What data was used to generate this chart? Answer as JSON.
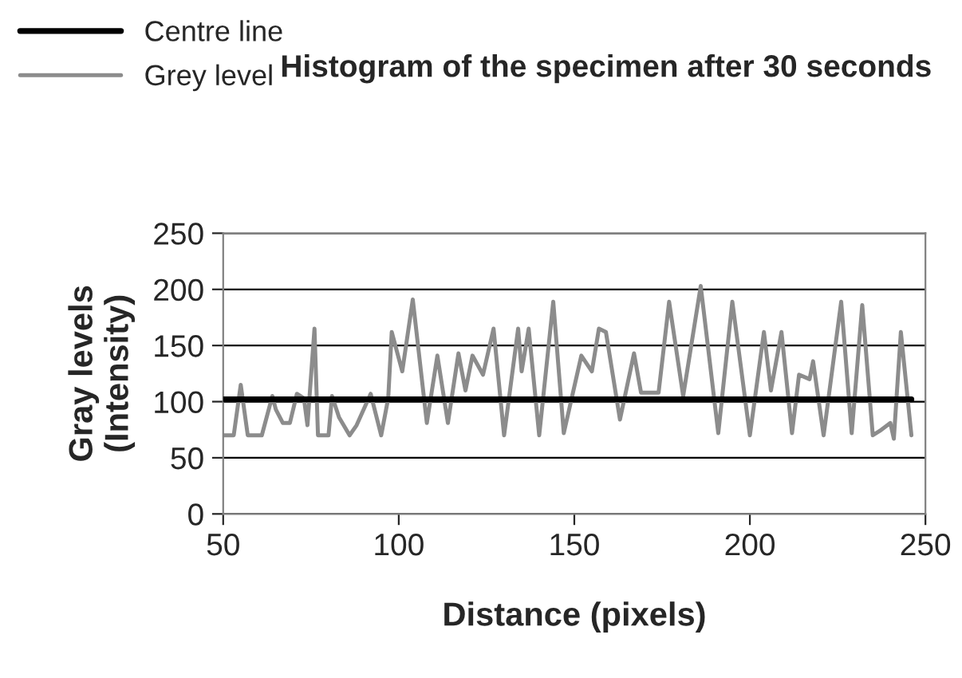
{
  "chart_data": {
    "type": "line",
    "title": "Histogram of the specimen after 30 seconds",
    "xlabel": "Distance (pixels)",
    "ylabel": "Gray levels\n(Intensity)",
    "xlim": [
      50,
      250
    ],
    "xticks": [
      50,
      100,
      150,
      200,
      250
    ],
    "ylim": [
      0,
      250
    ],
    "yticks": [
      0,
      50,
      100,
      150,
      200,
      250
    ],
    "grid": "y",
    "legend": "top left",
    "marker": "none",
    "line_style": "solid",
    "series": [
      {
        "name": "Centre line",
        "color": "#000000",
        "x": [
          50,
          246
        ],
        "values": [
          102,
          102
        ]
      },
      {
        "name": "Grey level",
        "color": "#8c8c8c",
        "x": [
          50,
          53,
          55,
          57,
          61,
          64,
          65,
          67,
          69,
          71,
          73,
          74,
          76,
          77,
          80,
          81,
          83,
          86,
          88,
          92,
          95,
          97,
          98,
          101,
          104,
          108,
          111,
          114,
          117,
          119,
          121,
          124,
          127,
          130,
          134,
          135,
          137,
          140,
          144,
          147,
          152,
          155,
          157,
          159,
          163,
          167,
          169,
          174,
          177,
          181,
          186,
          191,
          195,
          200,
          204,
          206,
          209,
          212,
          214,
          217,
          218,
          221,
          226,
          229,
          232,
          235,
          237,
          240,
          241,
          243,
          246
        ],
        "values": [
          70,
          70,
          115,
          70,
          70,
          105,
          93,
          81,
          81,
          107,
          103,
          79,
          165,
          70,
          70,
          105,
          86,
          70,
          79,
          107,
          70,
          103,
          162,
          127,
          191,
          81,
          141,
          81,
          143,
          110,
          141,
          124,
          165,
          70,
          165,
          127,
          165,
          70,
          189,
          72,
          141,
          127,
          165,
          162,
          84,
          143,
          108,
          108,
          189,
          105,
          203,
          72,
          189,
          70,
          162,
          110,
          162,
          72,
          124,
          120,
          136,
          70,
          189,
          72,
          186,
          70,
          74,
          81,
          67,
          162,
          70
        ]
      }
    ]
  }
}
